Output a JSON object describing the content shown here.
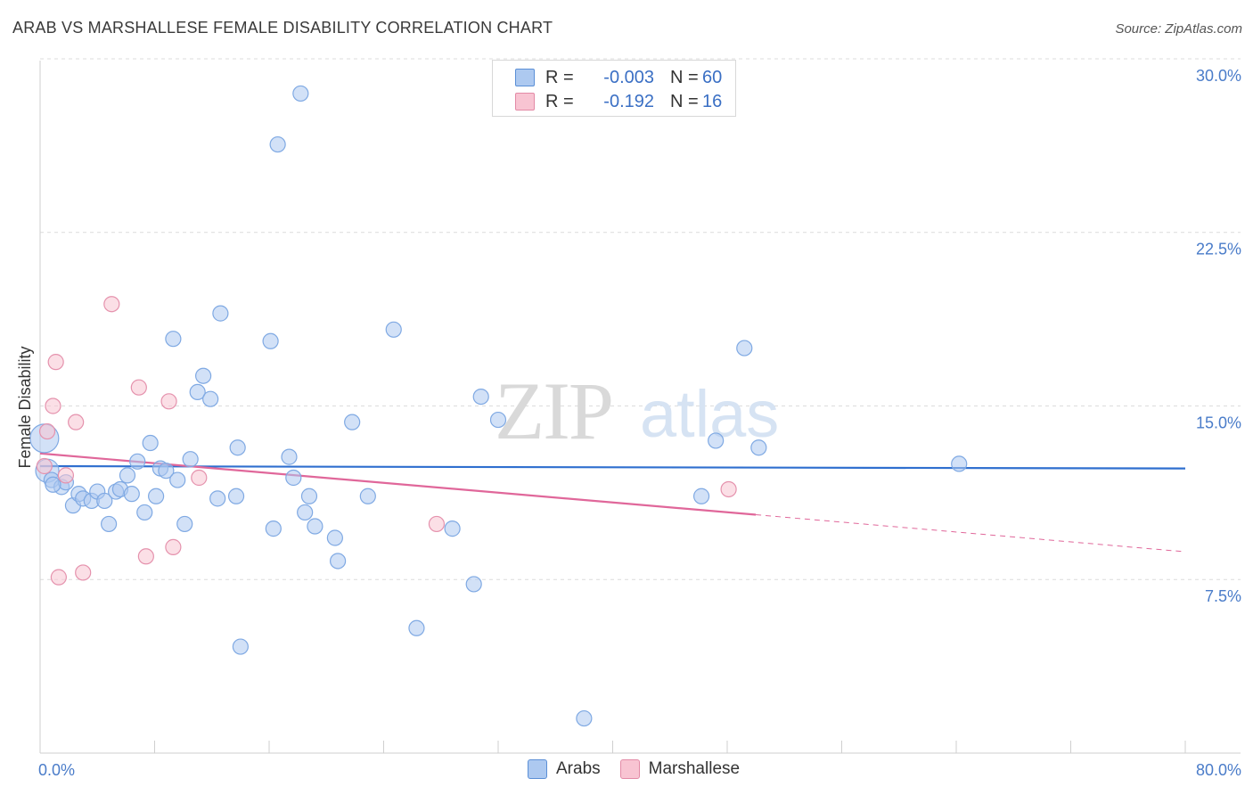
{
  "title": "ARAB VS MARSHALLESE FEMALE DISABILITY CORRELATION CHART",
  "source": "Source: ZipAtlas.com",
  "watermark": {
    "zip": "ZIP",
    "atlas": "atlas"
  },
  "legend": {
    "rows": [
      {
        "r_label": "R =",
        "r_value": "-0.003",
        "n_label": "N =",
        "n_value": "60",
        "color": "#adc9f0",
        "border": "#5b8fd6"
      },
      {
        "r_label": "R =",
        "r_value": "-0.192",
        "n_label": "N =",
        "n_value": "16",
        "color": "#f8c4d2",
        "border": "#e38aa6"
      }
    ]
  },
  "bottom_legend": [
    {
      "label": "Arabs",
      "color": "#adc9f0",
      "border": "#5b8fd6"
    },
    {
      "label": "Marshallese",
      "color": "#f8c4d2",
      "border": "#e38aa6"
    }
  ],
  "chart_data": {
    "type": "scatter",
    "title": "ARAB VS MARSHALLESE FEMALE DISABILITY CORRELATION CHART",
    "xlabel": "",
    "ylabel": "Female Disability",
    "xlim": [
      0,
      80
    ],
    "ylim": [
      0,
      31.0
    ],
    "x_tick_labels": [
      "0.0%",
      "80.0%"
    ],
    "y_ticks": [
      7.5,
      15.0,
      22.5,
      30.0
    ],
    "y_tick_labels": [
      "7.5%",
      "15.0%",
      "22.5%",
      "30.0%"
    ],
    "series": [
      {
        "name": "Arabs",
        "color": "#7fa9e3",
        "fill": "rgba(173,201,240,0.55)",
        "trend": {
          "x": [
            0,
            80
          ],
          "y": [
            12.4,
            12.3
          ],
          "color": "#2f6fcf"
        },
        "points": [
          [
            0.3,
            13.6
          ],
          [
            0.5,
            12.2
          ],
          [
            0.8,
            11.8
          ],
          [
            1.5,
            11.5
          ],
          [
            1.8,
            11.7
          ],
          [
            2.3,
            10.7
          ],
          [
            2.7,
            11.2
          ],
          [
            3.0,
            11.0
          ],
          [
            3.6,
            10.9
          ],
          [
            4.0,
            11.3
          ],
          [
            4.5,
            10.9
          ],
          [
            4.8,
            9.9
          ],
          [
            5.3,
            11.3
          ],
          [
            5.6,
            11.4
          ],
          [
            6.1,
            12.0
          ],
          [
            6.4,
            11.2
          ],
          [
            6.8,
            12.6
          ],
          [
            7.3,
            10.4
          ],
          [
            7.7,
            13.4
          ],
          [
            8.1,
            11.1
          ],
          [
            8.4,
            12.3
          ],
          [
            8.8,
            12.2
          ],
          [
            9.3,
            17.9
          ],
          [
            9.6,
            11.8
          ],
          [
            10.1,
            9.9
          ],
          [
            10.5,
            12.7
          ],
          [
            11.0,
            15.6
          ],
          [
            11.4,
            16.3
          ],
          [
            11.9,
            15.3
          ],
          [
            12.4,
            11.0
          ],
          [
            12.6,
            19.0
          ],
          [
            13.7,
            11.1
          ],
          [
            14.0,
            4.6
          ],
          [
            16.1,
            17.8
          ],
          [
            16.3,
            9.7
          ],
          [
            16.6,
            26.3
          ],
          [
            17.4,
            12.8
          ],
          [
            17.7,
            11.9
          ],
          [
            18.2,
            28.5
          ],
          [
            18.5,
            10.4
          ],
          [
            18.8,
            11.1
          ],
          [
            19.2,
            9.8
          ],
          [
            20.6,
            9.3
          ],
          [
            20.8,
            8.3
          ],
          [
            21.8,
            14.3
          ],
          [
            22.9,
            11.1
          ],
          [
            24.7,
            18.3
          ],
          [
            26.3,
            5.4
          ],
          [
            28.8,
            9.7
          ],
          [
            30.3,
            7.3
          ],
          [
            30.8,
            15.4
          ],
          [
            32.0,
            14.4
          ],
          [
            38.0,
            1.5
          ],
          [
            46.2,
            11.1
          ],
          [
            47.2,
            13.5
          ],
          [
            49.2,
            17.5
          ],
          [
            50.2,
            13.2
          ],
          [
            64.2,
            12.5
          ],
          [
            13.8,
            13.2
          ],
          [
            0.9,
            11.6
          ]
        ]
      },
      {
        "name": "Marshallese",
        "color": "#e592ad",
        "fill": "rgba(248,196,210,0.55)",
        "trend": {
          "x": [
            0,
            50
          ],
          "y": [
            12.95,
            10.3
          ],
          "dashed_to": [
            80,
            8.7
          ],
          "color": "#e0679a"
        },
        "points": [
          [
            0.3,
            12.4
          ],
          [
            0.5,
            13.9
          ],
          [
            0.9,
            15.0
          ],
          [
            1.1,
            16.9
          ],
          [
            1.3,
            7.6
          ],
          [
            1.8,
            12.0
          ],
          [
            2.5,
            14.3
          ],
          [
            3.0,
            7.8
          ],
          [
            5.0,
            19.4
          ],
          [
            6.9,
            15.8
          ],
          [
            7.4,
            8.5
          ],
          [
            9.0,
            15.2
          ],
          [
            9.3,
            8.9
          ],
          [
            11.1,
            11.9
          ],
          [
            27.7,
            9.9
          ],
          [
            48.1,
            11.4
          ]
        ]
      }
    ]
  }
}
